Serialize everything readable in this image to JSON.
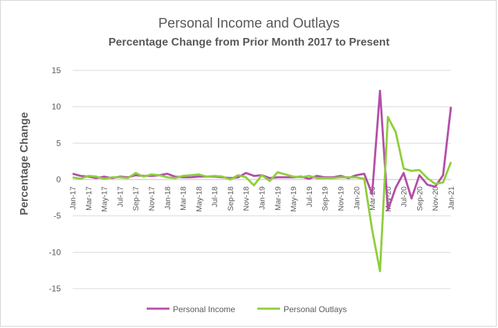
{
  "chart_data": {
    "type": "line",
    "title": "Personal Income and Outlays",
    "subtitle": "Percentage Change from Prior Month 2017 to Present",
    "ylabel": "Percentage Change",
    "xlabel": "",
    "ylim": [
      -15,
      15
    ],
    "yticks": [
      15,
      10,
      5,
      0,
      -5,
      -10,
      -15
    ],
    "grid": true,
    "legend_position": "bottom",
    "x": [
      "Jan-17",
      "Feb-17",
      "Mar-17",
      "Apr-17",
      "May-17",
      "Jun-17",
      "Jul-17",
      "Aug-17",
      "Sep-17",
      "Oct-17",
      "Nov-17",
      "Dec-17",
      "Jan-18",
      "Feb-18",
      "Mar-18",
      "Apr-18",
      "May-18",
      "Jun-18",
      "Jul-18",
      "Aug-18",
      "Sep-18",
      "Oct-18",
      "Nov-18",
      "Dec-18",
      "Jan-19",
      "Feb-19",
      "Mar-19",
      "Apr-19",
      "May-19",
      "Jun-19",
      "Jul-19",
      "Aug-19",
      "Sep-19",
      "Oct-19",
      "Nov-19",
      "Dec-19",
      "Jan-20",
      "Feb-20",
      "Mar-20",
      "Apr-20",
      "May-20",
      "Jun-20",
      "Jul-20",
      "Aug-20",
      "Sep-20",
      "Oct-20",
      "Nov-20",
      "Dec-20",
      "Jan-21"
    ],
    "tick_labels": [
      "Jan-17",
      "Mar-17",
      "May-17",
      "Jul-17",
      "Sep-17",
      "Nov-17",
      "Jan-18",
      "Mar-18",
      "May-18",
      "Jul-18",
      "Sep-18",
      "Nov-18",
      "Jan-19",
      "Mar-19",
      "May-19",
      "Jul-19",
      "Sep-19",
      "Nov-19",
      "Jan-20",
      "Mar-20",
      "May-20",
      "Jul-20",
      "Sep-20",
      "Nov-20",
      "Jan-21"
    ],
    "series": [
      {
        "name": "Personal Income",
        "color": "#b34fa8",
        "values": [
          0.8,
          0.5,
          0.4,
          0.2,
          0.4,
          0.2,
          0.4,
          0.3,
          0.6,
          0.5,
          0.5,
          0.6,
          0.8,
          0.4,
          0.3,
          0.3,
          0.4,
          0.4,
          0.4,
          0.3,
          0.2,
          0.3,
          0.9,
          0.5,
          0.6,
          0.2,
          0.3,
          0.3,
          0.3,
          0.4,
          0.1,
          0.5,
          0.3,
          0.3,
          0.5,
          0.2,
          0.6,
          0.8,
          -2.0,
          12.2,
          -4.2,
          -1.1,
          0.9,
          -2.6,
          0.6,
          -0.7,
          -1.0,
          0.6,
          10.0
        ]
      },
      {
        "name": "Personal Outlays",
        "color": "#8fce3c",
        "values": [
          0.3,
          0.1,
          0.5,
          0.4,
          0.1,
          0.3,
          0.3,
          0.2,
          0.9,
          0.4,
          0.7,
          0.6,
          0.3,
          0.2,
          0.5,
          0.6,
          0.7,
          0.4,
          0.5,
          0.4,
          0.0,
          0.6,
          0.3,
          -0.8,
          0.6,
          -0.2,
          1.0,
          0.7,
          0.4,
          0.3,
          0.5,
          0.2,
          0.2,
          0.2,
          0.3,
          0.3,
          0.3,
          0.1,
          -6.9,
          -12.6,
          8.6,
          6.5,
          1.5,
          1.2,
          1.3,
          0.2,
          -0.6,
          -0.4,
          2.4
        ]
      }
    ]
  }
}
